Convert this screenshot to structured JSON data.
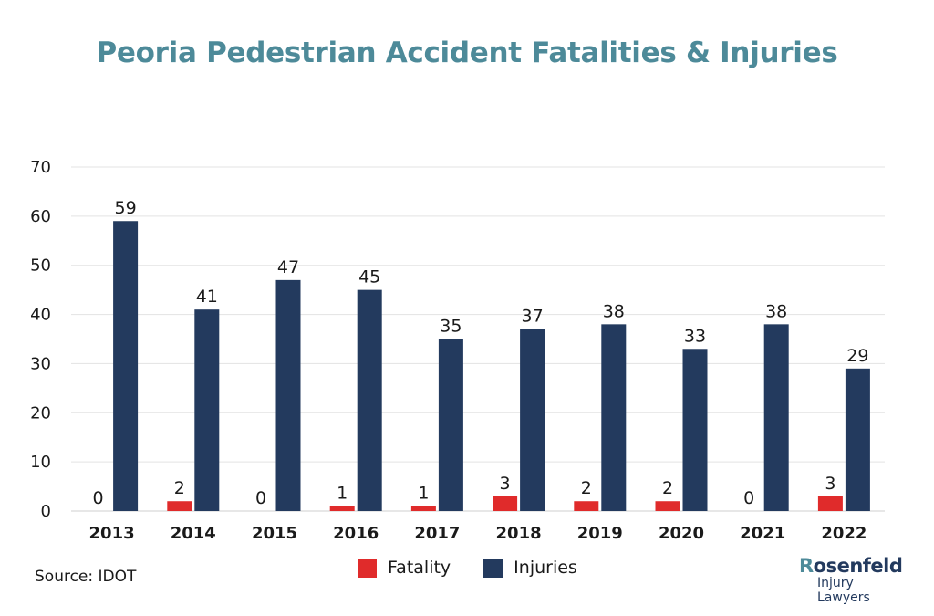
{
  "chart_data": {
    "type": "bar",
    "title": "Peoria Pedestrian Accident Fatalities & Injuries",
    "categories": [
      "2013",
      "2014",
      "2015",
      "2016",
      "2017",
      "2018",
      "2019",
      "2020",
      "2021",
      "2022"
    ],
    "series": [
      {
        "name": "Fatality",
        "values": [
          0,
          2,
          0,
          1,
          1,
          3,
          2,
          2,
          0,
          3
        ],
        "color": "#e02b2b"
      },
      {
        "name": "Injuries",
        "values": [
          59,
          41,
          47,
          45,
          35,
          37,
          38,
          33,
          38,
          29
        ],
        "color": "#233a5e"
      }
    ],
    "ylim": [
      0,
      70
    ],
    "yticks": [
      "0",
      "10",
      "20",
      "30",
      "40",
      "50",
      "60",
      "70"
    ],
    "grid": true,
    "legend": "bottom-center",
    "data_labels": true
  },
  "source": "Source: IDOT",
  "logo": {
    "brand_initial": "R",
    "brand_rest": "osenfeld",
    "sub": "Injury Lawyers"
  },
  "colors": {
    "title": "#4d8a99",
    "grid": "#e3e3e3",
    "text": "#1a1a1a"
  }
}
